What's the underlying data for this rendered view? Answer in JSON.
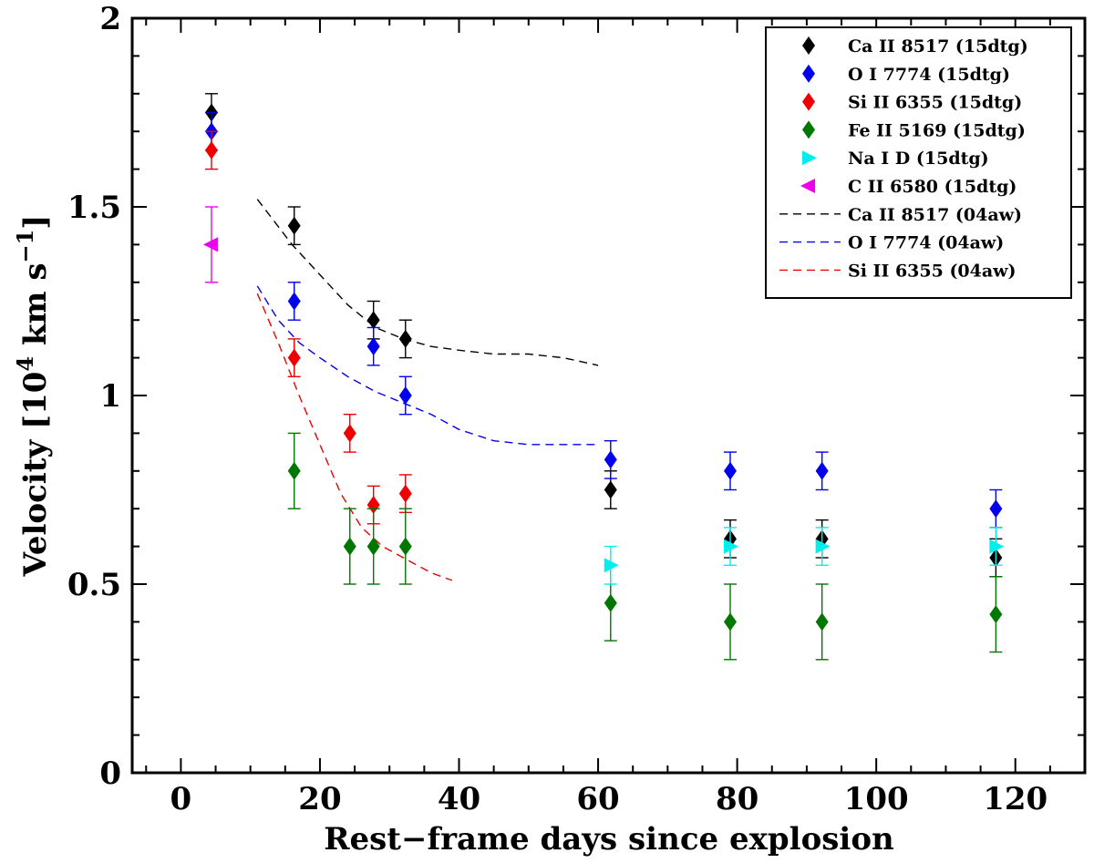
{
  "chart_data": {
    "type": "scatter",
    "xlabel": "Rest−frame days since explosion",
    "ylabel_main": "Velocity [10",
    "ylabel_exp": "4",
    "ylabel_units": " km s",
    "ylabel_exp2": "−1",
    "ylabel_close": "]",
    "xlim": [
      -7,
      130
    ],
    "ylim": [
      0,
      2
    ],
    "x_ticks": [
      {
        "value": 0,
        "label": "0"
      },
      {
        "value": 20,
        "label": "20"
      },
      {
        "value": 40,
        "label": "40"
      },
      {
        "value": 60,
        "label": "60"
      },
      {
        "value": 80,
        "label": "80"
      },
      {
        "value": 100,
        "label": "100"
      },
      {
        "value": 120,
        "label": "120"
      }
    ],
    "y_ticks": [
      {
        "value": 0,
        "label": "0"
      },
      {
        "value": 0.5,
        "label": "0.5"
      },
      {
        "value": 1,
        "label": "1"
      },
      {
        "value": 1.5,
        "label": "1.5"
      },
      {
        "value": 2,
        "label": "2"
      }
    ],
    "legend_position": "top-right",
    "series": [
      {
        "name": "Ca II 8517 (15dtg)",
        "color": "#000000",
        "marker": "diamond",
        "kind": "points",
        "points": [
          {
            "x": 4.4,
            "y": 1.75,
            "err": 0.05
          },
          {
            "x": 16.3,
            "y": 1.45,
            "err": 0.05
          },
          {
            "x": 27.7,
            "y": 1.2,
            "err": 0.05
          },
          {
            "x": 32.3,
            "y": 1.15,
            "err": 0.05
          },
          {
            "x": 61.8,
            "y": 0.75,
            "err": 0.05
          },
          {
            "x": 79.0,
            "y": 0.62,
            "err": 0.05
          },
          {
            "x": 92.2,
            "y": 0.62,
            "err": 0.05
          },
          {
            "x": 117.2,
            "y": 0.57,
            "err": 0.05
          }
        ]
      },
      {
        "name": "O I 7774 (15dtg)",
        "color": "#0000ee",
        "marker": "diamond",
        "kind": "points",
        "points": [
          {
            "x": 4.4,
            "y": 1.7,
            "err": 0.05
          },
          {
            "x": 16.3,
            "y": 1.25,
            "err": 0.05
          },
          {
            "x": 27.7,
            "y": 1.13,
            "err": 0.05
          },
          {
            "x": 32.3,
            "y": 1.0,
            "err": 0.05
          },
          {
            "x": 61.8,
            "y": 0.83,
            "err": 0.05
          },
          {
            "x": 79.0,
            "y": 0.8,
            "err": 0.05
          },
          {
            "x": 92.2,
            "y": 0.8,
            "err": 0.05
          },
          {
            "x": 117.2,
            "y": 0.7,
            "err": 0.05
          }
        ]
      },
      {
        "name": "Si II 6355 (15dtg)",
        "color": "#ee0000",
        "marker": "diamond",
        "kind": "points",
        "points": [
          {
            "x": 4.4,
            "y": 1.65,
            "err": 0.05
          },
          {
            "x": 16.3,
            "y": 1.1,
            "err": 0.05
          },
          {
            "x": 24.3,
            "y": 0.9,
            "err": 0.05
          },
          {
            "x": 27.7,
            "y": 0.71,
            "err": 0.05
          },
          {
            "x": 32.3,
            "y": 0.74,
            "err": 0.05
          }
        ]
      },
      {
        "name": "Fe II 5169 (15dtg)",
        "color": "#007700",
        "marker": "diamond",
        "kind": "points",
        "points": [
          {
            "x": 16.3,
            "y": 0.8,
            "err": 0.1
          },
          {
            "x": 24.3,
            "y": 0.6,
            "err": 0.1
          },
          {
            "x": 27.7,
            "y": 0.6,
            "err": 0.1
          },
          {
            "x": 32.3,
            "y": 0.6,
            "err": 0.1
          },
          {
            "x": 61.8,
            "y": 0.45,
            "err": 0.1
          },
          {
            "x": 79.0,
            "y": 0.4,
            "err": 0.1
          },
          {
            "x": 92.2,
            "y": 0.4,
            "err": 0.1
          },
          {
            "x": 117.2,
            "y": 0.42,
            "err": 0.1
          }
        ]
      },
      {
        "name": "Na I D (15dtg)",
        "color": "#00eeee",
        "marker": "triangle-right",
        "kind": "points",
        "points": [
          {
            "x": 61.8,
            "y": 0.55,
            "err": 0.05
          },
          {
            "x": 79.0,
            "y": 0.6,
            "err": 0.05
          },
          {
            "x": 92.2,
            "y": 0.6,
            "err": 0.05
          },
          {
            "x": 117.2,
            "y": 0.6,
            "err": 0.05
          }
        ]
      },
      {
        "name": "C II 6580 (15dtg)",
        "color": "#ee00ee",
        "marker": "triangle-left",
        "kind": "points",
        "points": [
          {
            "x": 4.4,
            "y": 1.4,
            "err": 0.1
          }
        ]
      },
      {
        "name": "Ca II 8517 (04aw)",
        "color": "#000000",
        "kind": "dashed-line",
        "points": [
          {
            "x": 11,
            "y": 1.52
          },
          {
            "x": 16,
            "y": 1.4
          },
          {
            "x": 20,
            "y": 1.32
          },
          {
            "x": 24,
            "y": 1.24
          },
          {
            "x": 28,
            "y": 1.18
          },
          {
            "x": 32,
            "y": 1.15
          },
          {
            "x": 36,
            "y": 1.13
          },
          {
            "x": 40,
            "y": 1.12
          },
          {
            "x": 45,
            "y": 1.11
          },
          {
            "x": 50,
            "y": 1.11
          },
          {
            "x": 55,
            "y": 1.1
          },
          {
            "x": 60,
            "y": 1.08
          }
        ]
      },
      {
        "name": "O I 7774 (04aw)",
        "color": "#0000ee",
        "kind": "dashed-line",
        "points": [
          {
            "x": 11,
            "y": 1.29
          },
          {
            "x": 14,
            "y": 1.2
          },
          {
            "x": 17,
            "y": 1.14
          },
          {
            "x": 20,
            "y": 1.1
          },
          {
            "x": 24,
            "y": 1.05
          },
          {
            "x": 28,
            "y": 1.01
          },
          {
            "x": 32,
            "y": 0.98
          },
          {
            "x": 36,
            "y": 0.95
          },
          {
            "x": 40,
            "y": 0.91
          },
          {
            "x": 45,
            "y": 0.88
          },
          {
            "x": 50,
            "y": 0.87
          },
          {
            "x": 55,
            "y": 0.87
          },
          {
            "x": 60,
            "y": 0.87
          }
        ]
      },
      {
        "name": "Si II 6355 (04aw)",
        "color": "#ee0000",
        "kind": "dashed-line",
        "points": [
          {
            "x": 11,
            "y": 1.27
          },
          {
            "x": 14,
            "y": 1.14
          },
          {
            "x": 17,
            "y": 1.0
          },
          {
            "x": 20,
            "y": 0.87
          },
          {
            "x": 23,
            "y": 0.74
          },
          {
            "x": 26,
            "y": 0.65
          },
          {
            "x": 29,
            "y": 0.6
          },
          {
            "x": 33,
            "y": 0.56
          },
          {
            "x": 36,
            "y": 0.53
          },
          {
            "x": 39,
            "y": 0.51
          }
        ]
      }
    ]
  }
}
